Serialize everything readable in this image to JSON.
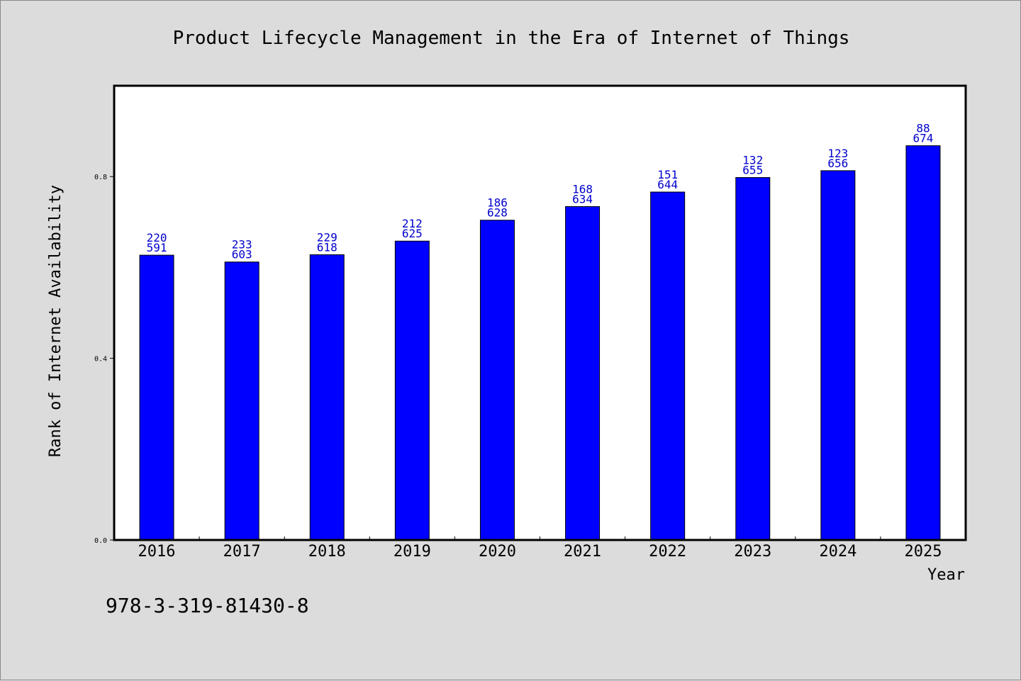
{
  "chart_data": {
    "type": "bar",
    "title": "Product Lifecycle Management in the Era of Internet of Things",
    "xlabel": "Year",
    "ylabel": "Rank of Internet Availability",
    "categories": [
      "2016",
      "2017",
      "2018",
      "2019",
      "2020",
      "2021",
      "2022",
      "2023",
      "2024",
      "2025"
    ],
    "series": [
      {
        "values": [
          0.627,
          0.612,
          0.628,
          0.658,
          0.704,
          0.734,
          0.766,
          0.798,
          0.813,
          0.868
        ],
        "color": "#0000ff"
      }
    ],
    "labels_top": [
      "220",
      "233",
      "229",
      "212",
      "186",
      "168",
      "151",
      "132",
      "123",
      "88"
    ],
    "labels_bottom": [
      "591",
      "603",
      "618",
      "625",
      "628",
      "634",
      "644",
      "655",
      "656",
      "674"
    ],
    "ylim": [
      0,
      1
    ],
    "yticks": [
      {
        "value": 0.0,
        "label": "0.0"
      },
      {
        "value": 0.4,
        "label": "0.4"
      },
      {
        "value": 0.8,
        "label": "0.8"
      }
    ],
    "grid": false,
    "label_color": "#0000cc"
  },
  "footer": {
    "isbn": "978-3-319-81430-8"
  }
}
